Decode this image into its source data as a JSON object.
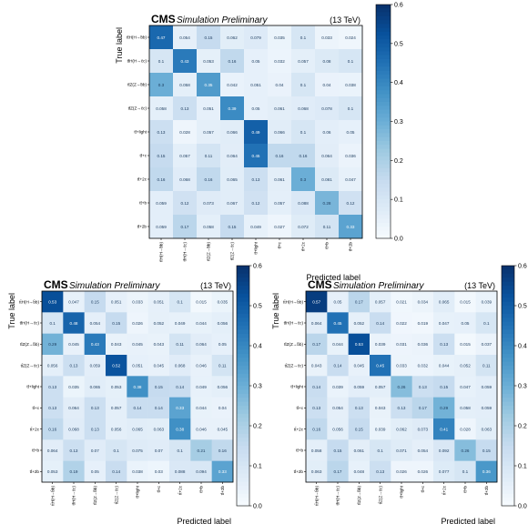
{
  "chart_data": [
    {
      "type": "heatmap",
      "header": {
        "experiment": "CMS",
        "status": "Simulation Preliminary",
        "energy": "(13 TeV)"
      },
      "xlabel": "Predicted label",
      "ylabel": "True label",
      "labels": [
        "tt̄H(H→b̄b)",
        "tt̄H(H→c̄c)",
        "tt̄Z(Z→b̄b)",
        "tt̄Z(Z→c̄c)",
        "tt̄+light",
        "tt̄+c",
        "tt̄+2c",
        "tt̄+b",
        "tt̄+2b"
      ],
      "zlim": [
        0,
        0.6
      ],
      "colorbar_ticks": [
        "0.0",
        "0.1",
        "0.2",
        "0.3",
        "0.4",
        "0.5",
        "0.6"
      ],
      "values": [
        [
          0.47,
          0.054,
          0.15,
          0.062,
          0.079,
          0.035,
          0.1,
          0.033,
          0.024
        ],
        [
          0.1,
          0.43,
          0.053,
          0.16,
          0.05,
          0.032,
          0.057,
          0.08,
          0.1
        ],
        [
          0.3,
          0.058,
          0.35,
          0.042,
          0.051,
          0.04,
          0.1,
          0.04,
          0.038
        ],
        [
          0.058,
          0.13,
          0.051,
          0.39,
          0.05,
          0.061,
          0.068,
          0.078,
          0.1
        ],
        [
          0.13,
          0.028,
          0.057,
          0.066,
          0.49,
          0.066,
          0.1,
          0.06,
          0.05
        ],
        [
          0.15,
          0.057,
          0.11,
          0.064,
          0.45,
          0.16,
          0.16,
          0.064,
          0.036
        ],
        [
          0.16,
          0.068,
          0.16,
          0.065,
          0.13,
          0.061,
          0.3,
          0.081,
          0.047
        ],
        [
          0.059,
          0.12,
          0.073,
          0.067,
          0.12,
          0.057,
          0.088,
          0.28,
          0.12
        ],
        [
          0.059,
          0.17,
          0.058,
          0.15,
          0.049,
          0.027,
          0.072,
          0.11,
          0.33
        ]
      ]
    },
    {
      "type": "heatmap",
      "header": {
        "experiment": "CMS",
        "status": "Simulation Preliminary",
        "energy": "(13 TeV)"
      },
      "xlabel": "Predicted label",
      "ylabel": "True label",
      "labels": [
        "tt̄H(H→b̄b)",
        "tt̄H(H→c̄c)",
        "tt̄Z(Z→b̄b)",
        "tt̄Z(Z→c̄c)",
        "tt̄+light",
        "tt̄+c",
        "tt̄+2c",
        "tt̄+b",
        "tt̄+2b"
      ],
      "zlim": [
        0,
        0.6
      ],
      "colorbar_ticks": [
        "0.0",
        "0.1",
        "0.2",
        "0.3",
        "0.4",
        "0.5",
        "0.6"
      ],
      "values": [
        [
          0.53,
          0.047,
          0.15,
          0.051,
          0.033,
          0.051,
          0.1,
          0.015,
          0.035
        ],
        [
          0.1,
          0.48,
          0.054,
          0.15,
          0.026,
          0.052,
          0.049,
          0.044,
          0.056
        ],
        [
          0.29,
          0.045,
          0.43,
          0.043,
          0.045,
          0.043,
          0.11,
          0.064,
          0.05
        ],
        [
          0.056,
          0.13,
          0.059,
          0.52,
          0.051,
          0.045,
          0.068,
          0.046,
          0.11
        ],
        [
          0.13,
          0.035,
          0.065,
          0.053,
          0.38,
          0.15,
          0.14,
          0.049,
          0.056
        ],
        [
          0.13,
          0.064,
          0.13,
          0.057,
          0.14,
          0.14,
          0.33,
          0.044,
          0.04
        ],
        [
          0.16,
          0.068,
          0.13,
          0.056,
          0.065,
          0.063,
          0.38,
          0.046,
          0.045
        ],
        [
          0.064,
          0.13,
          0.07,
          0.1,
          0.075,
          0.07,
          0.1,
          0.21,
          0.16
        ],
        [
          0.053,
          0.19,
          0.05,
          0.14,
          0.038,
          0.03,
          0.088,
          0.094,
          0.33
        ]
      ]
    },
    {
      "type": "heatmap",
      "header": {
        "experiment": "CMS",
        "status": "Simulation Preliminary",
        "energy": "(13 TeV)"
      },
      "xlabel": "Predicted label",
      "ylabel": "True label",
      "labels": [
        "tt̄H(H→b̄b)",
        "tt̄H(H→c̄c)",
        "tt̄Z(Z→b̄b)",
        "tt̄Z(Z→c̄c)",
        "tt̄+light",
        "tt̄+c",
        "tt̄+2c",
        "tt̄+b",
        "tt̄+2b"
      ],
      "zlim": [
        0,
        0.6
      ],
      "colorbar_ticks": [
        "0.0",
        "0.1",
        "0.2",
        "0.3",
        "0.4",
        "0.5",
        "0.6"
      ],
      "values": [
        [
          0.57,
          0.05,
          0.17,
          0.057,
          0.021,
          0.034,
          0.065,
          0.015,
          0.039
        ],
        [
          0.064,
          0.45,
          0.052,
          0.14,
          0.022,
          0.019,
          0.047,
          0.05,
          0.1
        ],
        [
          0.17,
          0.044,
          0.53,
          0.039,
          0.031,
          0.036,
          0.13,
          0.015,
          0.037
        ],
        [
          0.043,
          0.14,
          0.045,
          0.45,
          0.033,
          0.032,
          0.044,
          0.052,
          0.11
        ],
        [
          0.14,
          0.039,
          0.059,
          0.057,
          0.26,
          0.13,
          0.15,
          0.047,
          0.059
        ],
        [
          0.13,
          0.054,
          0.13,
          0.043,
          0.13,
          0.17,
          0.29,
          0.058,
          0.059
        ],
        [
          0.16,
          0.056,
          0.15,
          0.039,
          0.062,
          0.073,
          0.41,
          0.028,
          0.063
        ],
        [
          0.058,
          0.15,
          0.061,
          0.1,
          0.071,
          0.054,
          0.092,
          0.26,
          0.15
        ],
        [
          0.063,
          0.17,
          0.048,
          0.13,
          0.026,
          0.026,
          0.077,
          0.1,
          0.36
        ]
      ]
    }
  ]
}
